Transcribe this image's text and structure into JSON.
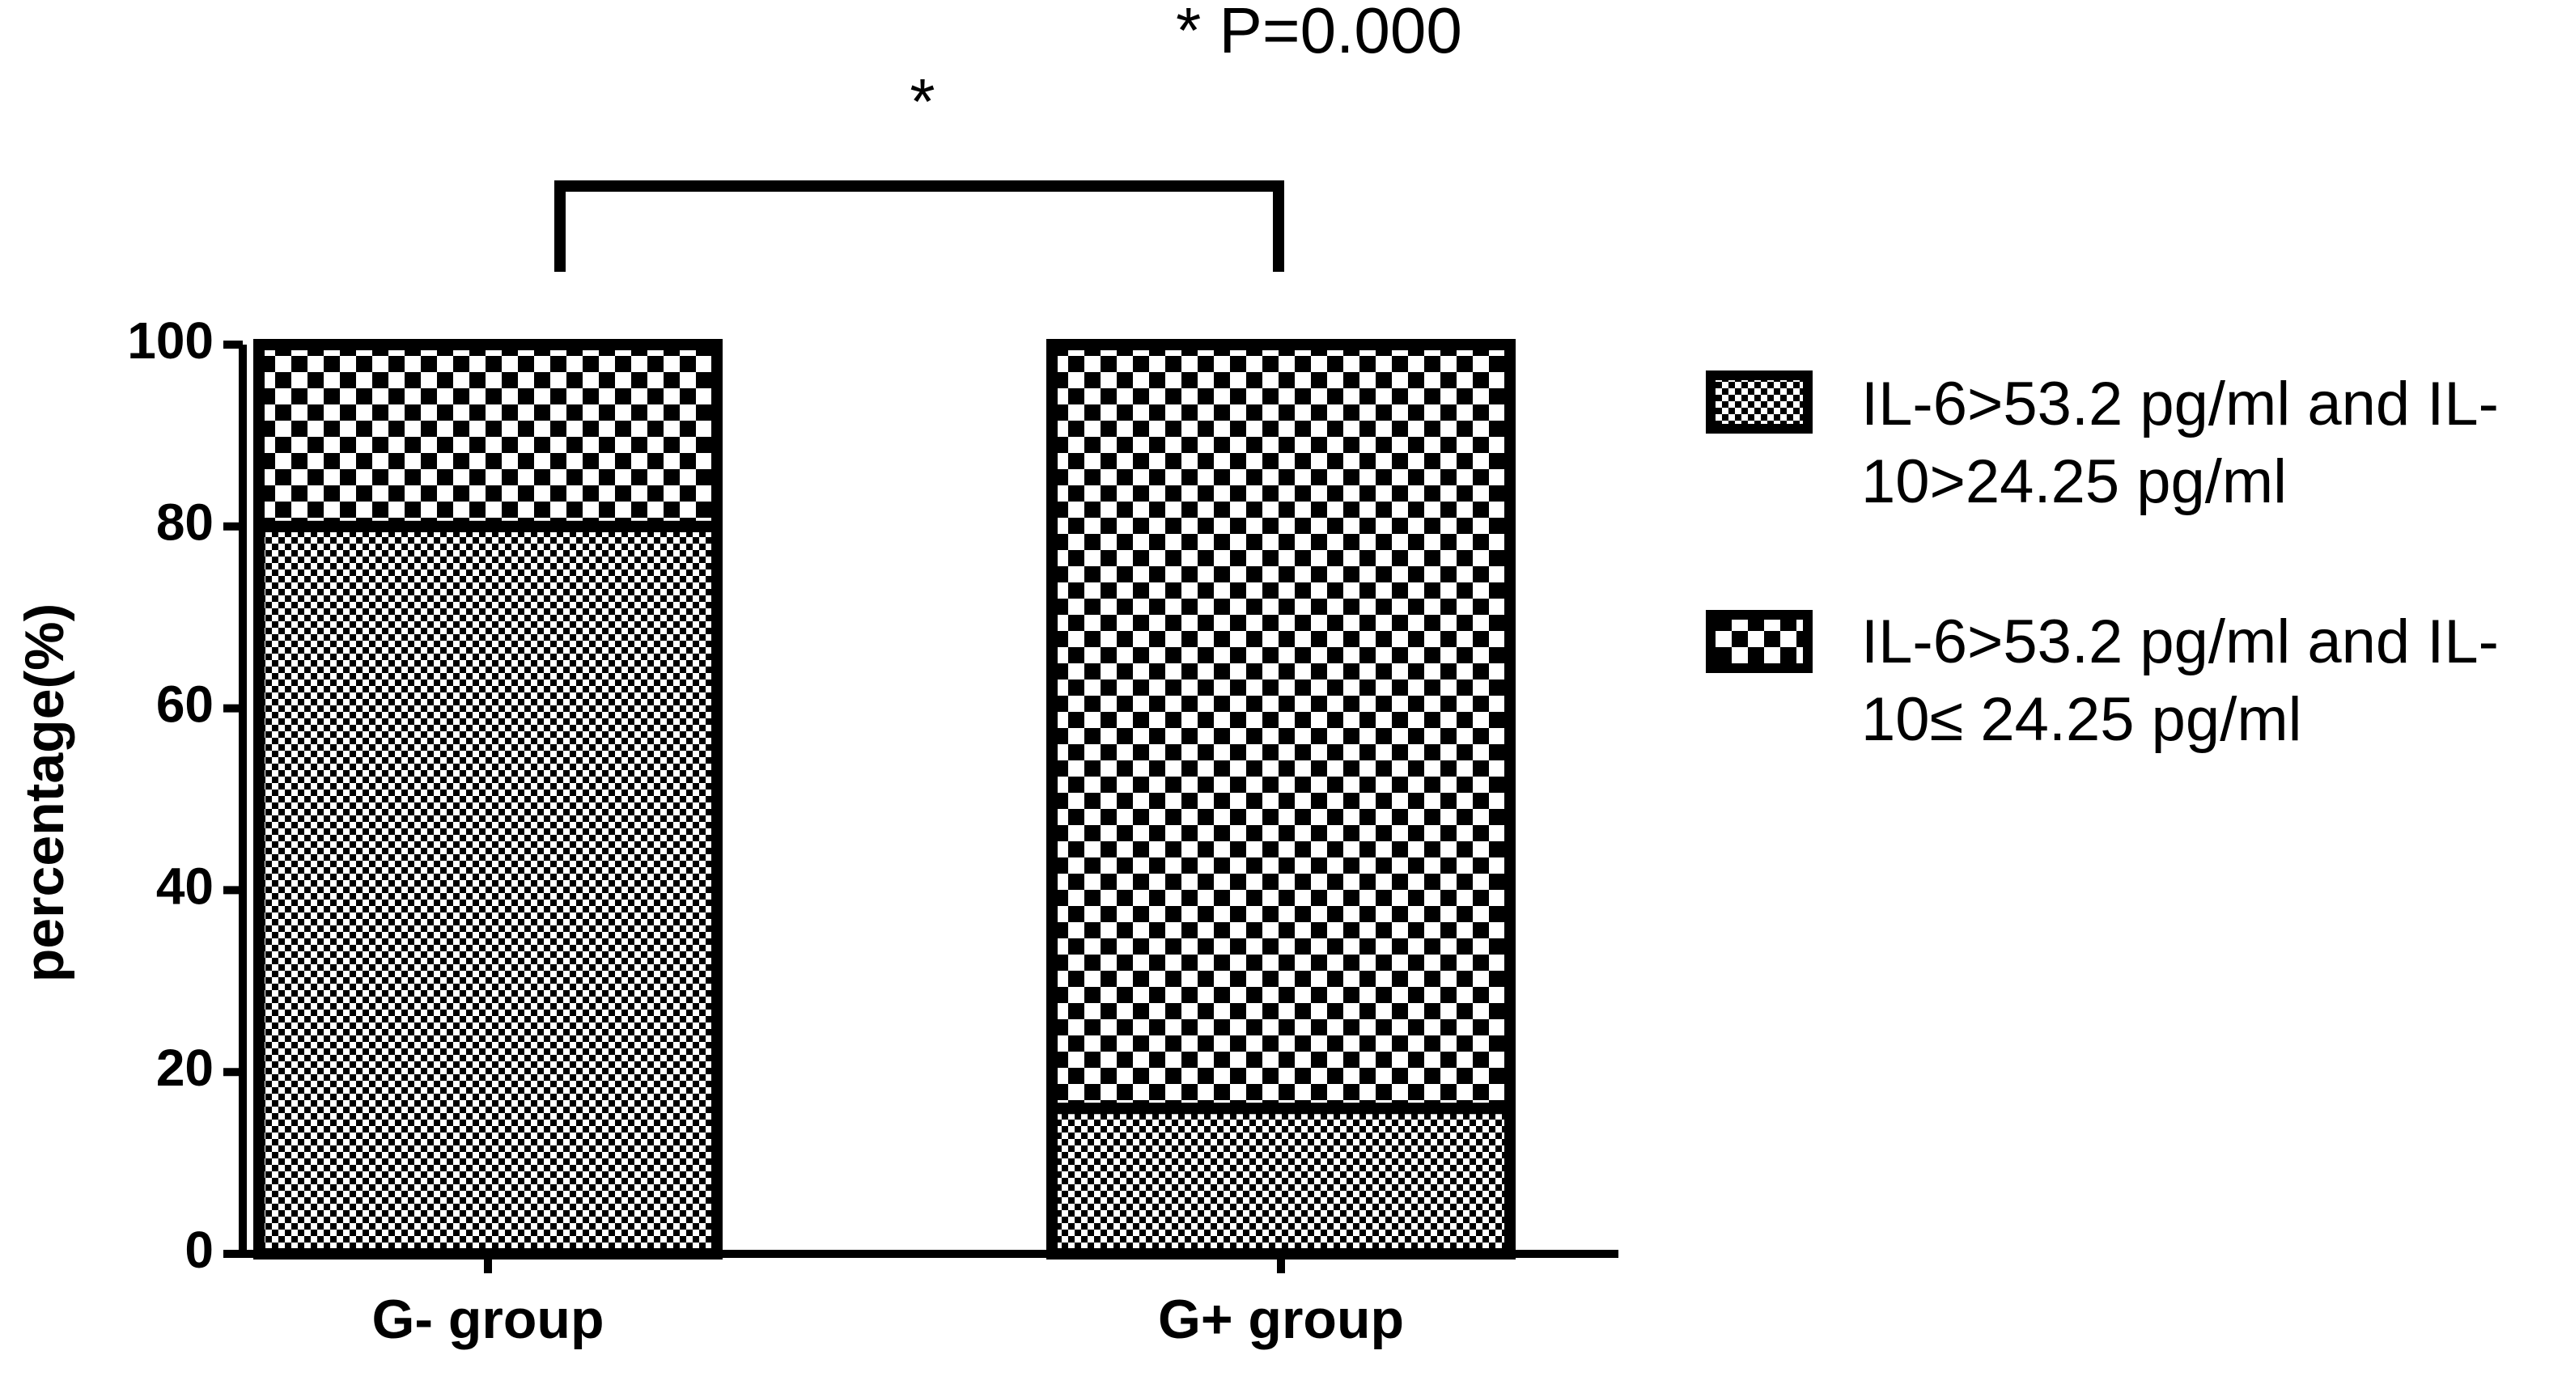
{
  "chart_data": {
    "type": "stacked_bar",
    "annotations": [
      "* P=0.000",
      "*"
    ],
    "y_label": "percentage(%)",
    "categories": [
      "G- group",
      "G+ group"
    ],
    "series": [
      {
        "name": "IL-6>53.2 pg/ml and IL-10>24.25 pg/ml",
        "color": "#000000",
        "pattern": "fine-checker",
        "values": [
          80,
          16
        ]
      },
      {
        "name": "IL-6>53.2 pg/ml and IL-10≤ 24.25 pg/ml",
        "color": "#000000",
        "pattern": "coarse-checker",
        "values": [
          20,
          84
        ]
      }
    ],
    "ylim": [
      0,
      100
    ],
    "yticks": [
      0,
      20,
      40,
      60,
      80,
      100
    ],
    "grid": false,
    "legend": "right"
  }
}
